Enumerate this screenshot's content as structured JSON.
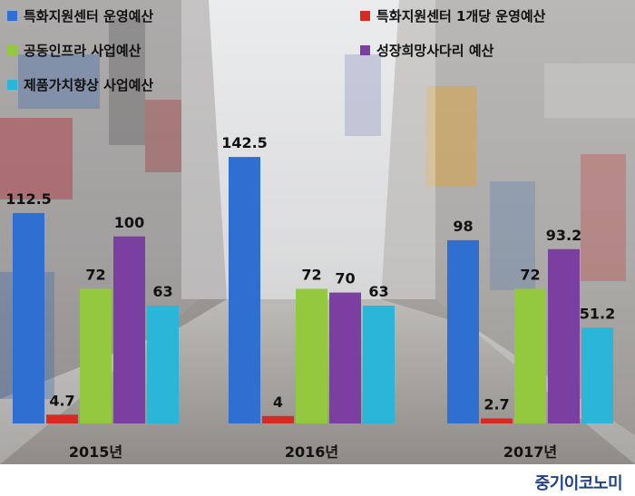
{
  "chart_data": {
    "type": "bar",
    "categories": [
      "2015년",
      "2016년",
      "2017년"
    ],
    "series": [
      {
        "name": "특화지원센터 운영예산",
        "color": "#2e6fd1",
        "values": [
          112.5,
          142.5,
          98
        ]
      },
      {
        "name": "특화지원센터 1개당 운영예산",
        "color": "#d62b23",
        "values": [
          4.7,
          4,
          2.7
        ]
      },
      {
        "name": "공동인프라 사업예산",
        "color": "#93c83f",
        "values": [
          72,
          72,
          72
        ]
      },
      {
        "name": "성장희망사다리 예산",
        "color": "#7a3fa0",
        "values": [
          100,
          70,
          93.2
        ]
      },
      {
        "name": "제품가치향상 사업예산",
        "color": "#2bb5d8",
        "values": [
          63,
          63,
          51.2
        ]
      }
    ],
    "value_labels": [
      [
        "112.5",
        "4.7",
        "72",
        "100",
        "63"
      ],
      [
        "142.5",
        "4",
        "72",
        "70",
        "63"
      ],
      [
        "98",
        "2.7",
        "72",
        "93.2",
        "51.2"
      ]
    ],
    "ylim": [
      0,
      160
    ],
    "grid": false,
    "legend_position": "top"
  },
  "branding": {
    "logo_text": "중기이코노미"
  }
}
